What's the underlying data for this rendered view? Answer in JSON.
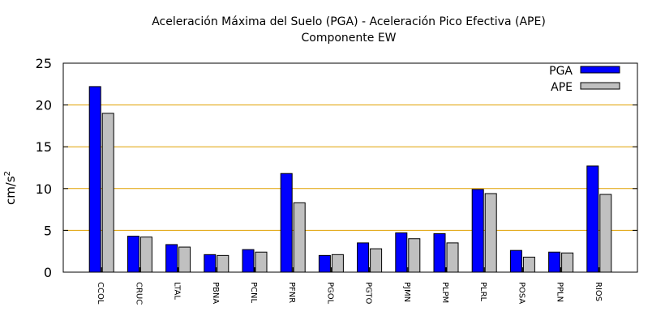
{
  "chart_data": {
    "type": "bar",
    "title_line1": "Aceleración Máxima del Suelo (PGA) -  Aceleración Pico Efectiva (APE)",
    "title_line2": "Componente EW",
    "ylabel_base": "cm/s",
    "ylabel_sup": "2",
    "xlabel": "",
    "ylim": [
      0,
      25
    ],
    "yticks": [
      0,
      5,
      10,
      15,
      20,
      25
    ],
    "grid": true,
    "legend_position": "top-right",
    "categories": [
      "CCOL",
      "CRUC",
      "LTAL",
      "PBNA",
      "PCNL",
      "PFNR",
      "PGOL",
      "PGTO",
      "PJMN",
      "PLPM",
      "PLRL",
      "POSA",
      "PPLN",
      "RIOS"
    ],
    "series": [
      {
        "name": "PGA",
        "color": "#0000ff",
        "values": [
          22.2,
          4.3,
          3.3,
          2.1,
          2.7,
          11.8,
          2.0,
          3.5,
          4.7,
          4.6,
          9.9,
          2.6,
          2.4,
          12.7
        ]
      },
      {
        "name": "APE",
        "color": "#c0c0c0",
        "values": [
          19.0,
          4.2,
          3.0,
          2.0,
          2.4,
          8.3,
          2.1,
          2.8,
          4.0,
          3.5,
          9.4,
          1.8,
          2.3,
          9.3
        ]
      }
    ],
    "grid_color": "#e0a000"
  }
}
